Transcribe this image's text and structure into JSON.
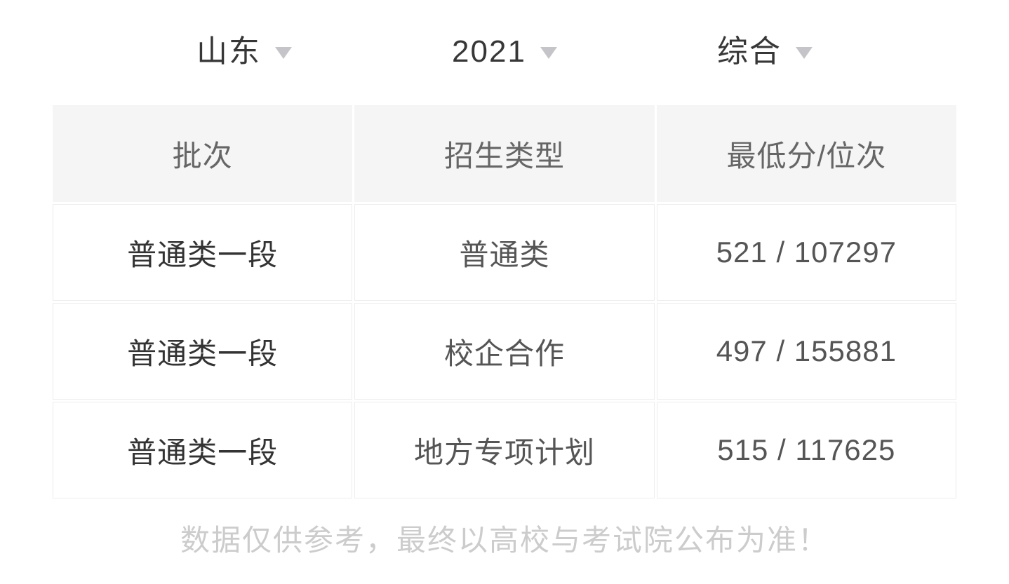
{
  "filters": [
    {
      "label": "山东"
    },
    {
      "label": "2021"
    },
    {
      "label": "综合"
    }
  ],
  "table": {
    "columns": [
      "批次",
      "招生类型",
      "最低分/位次"
    ],
    "rows": [
      [
        "普通类一段",
        "普通类",
        "521 / 107297"
      ],
      [
        "普通类一段",
        "校企合作",
        "497 / 155881"
      ],
      [
        "普通类一段",
        "地方专项计划",
        "515 / 117625"
      ]
    ]
  },
  "footer": {
    "note": "数据仅供参考，最终以高校与考试院公布为准！"
  },
  "colors": {
    "header_bg": "#f5f5f6",
    "cell_border": "#ededee",
    "text_dark": "#333333",
    "text_medium": "#555555",
    "text_header": "#666666",
    "text_muted": "#cccccc",
    "caret": "#c5c5c9",
    "page_bg": "#ffffff"
  }
}
